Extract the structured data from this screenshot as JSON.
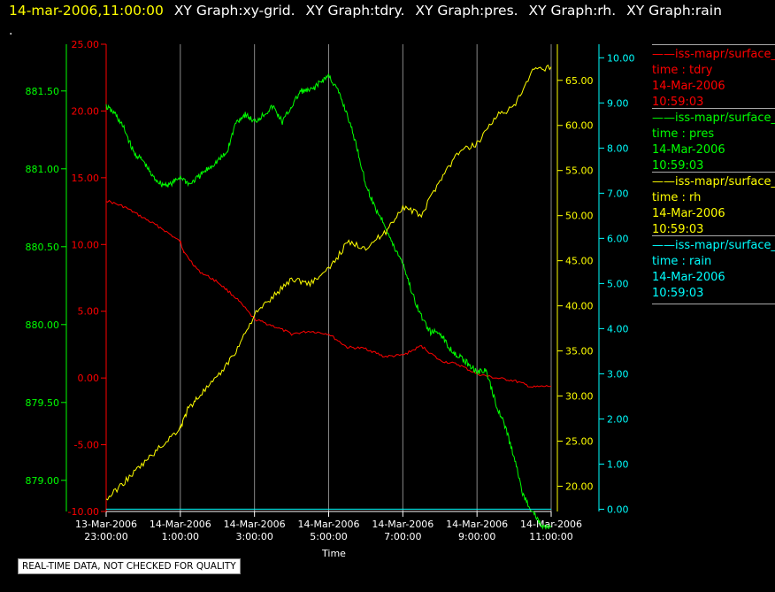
{
  "header": {
    "timestamp": "14-mar-2006,11:00:00",
    "graphs": [
      "XY Graph:xy-grid.",
      "XY Graph:tdry.",
      "XY Graph:pres.",
      "XY Graph:rh.",
      "XY Graph:rain"
    ],
    "dot": "."
  },
  "footer": "REAL-TIME DATA, NOT CHECKED FOR QUALITY",
  "legend": [
    {
      "series": "——iss-mapr/surface_met",
      "var": "time : tdry",
      "date": "14-Mar-2006",
      "time": "10:59:03",
      "color": "#ff0000"
    },
    {
      "series": "——iss-mapr/surface_met",
      "var": "time : pres",
      "date": "14-Mar-2006",
      "time": "10:59:03",
      "color": "#00ff00"
    },
    {
      "series": "——iss-mapr/surface_met",
      "var": "time : rh",
      "date": "14-Mar-2006",
      "time": "10:59:03",
      "color": "#ffff00"
    },
    {
      "series": "——iss-mapr/surface_met",
      "var": "time : rain",
      "date": "14-Mar-2006",
      "time": "10:59:03",
      "color": "#00ffff"
    }
  ],
  "chart_data": {
    "type": "line",
    "xlabel": "Time",
    "x_ticks": [
      {
        "line1": "13-Mar-2006",
        "line2": "23:00:00"
      },
      {
        "line1": "14-Mar-2006",
        "line2": "1:00:00"
      },
      {
        "line1": "14-Mar-2006",
        "line2": "3:00:00"
      },
      {
        "line1": "14-Mar-2006",
        "line2": "5:00:00"
      },
      {
        "line1": "14-Mar-2006",
        "line2": "7:00:00"
      },
      {
        "line1": "14-Mar-2006",
        "line2": "9:00:00"
      },
      {
        "line1": "14-Mar-2006",
        "line2": "11:00:00"
      }
    ],
    "x_hours": [
      23,
      25,
      27,
      29,
      31,
      33,
      35
    ],
    "xlim_hours": [
      23,
      35
    ],
    "grid": "vertical",
    "axes": {
      "pres": {
        "color": "#00ff00",
        "min": 878.8,
        "max": 881.8,
        "ticks": [
          "879.00",
          "879.50",
          "880.00",
          "880.50",
          "881.00",
          "881.50"
        ]
      },
      "tdry": {
        "color": "#ff0000",
        "min": -10,
        "max": 25,
        "ticks": [
          "-10.00",
          "-5.00",
          "0.00",
          "5.00",
          "10.00",
          "15.00",
          "20.00",
          "25.00"
        ]
      },
      "rh": {
        "color": "#ffff00",
        "min": 17.2,
        "max": 69.0,
        "ticks": [
          "20.00",
          "25.00",
          "30.00",
          "35.00",
          "40.00",
          "45.00",
          "50.00",
          "55.00",
          "60.00",
          "65.00"
        ]
      },
      "rain": {
        "color": "#00ffff",
        "min": -0.05,
        "max": 10.3,
        "ticks": [
          "0.00",
          "1.00",
          "2.00",
          "3.00",
          "4.00",
          "5.00",
          "6.00",
          "7.00",
          "8.00",
          "9.00",
          "10.00"
        ]
      }
    },
    "series": [
      {
        "name": "tdry",
        "axis": "tdry",
        "color": "#ff0000",
        "x": [
          23,
          23.5,
          24,
          24.5,
          25,
          25.1,
          25.5,
          26,
          26.5,
          27,
          27.5,
          28,
          28.5,
          29,
          29.5,
          30,
          30.5,
          31,
          31.5,
          32,
          32.5,
          33,
          33.5,
          34,
          34.5,
          35
        ],
        "y": [
          13.3,
          12.8,
          12.0,
          11.2,
          10.2,
          9.4,
          8.0,
          7.2,
          6.0,
          4.4,
          3.9,
          3.3,
          3.5,
          3.3,
          2.3,
          2.2,
          1.6,
          1.7,
          2.4,
          1.3,
          1.0,
          0.3,
          0.0,
          -0.2,
          -0.7,
          -0.6
        ]
      },
      {
        "name": "pres",
        "axis": "pres",
        "color": "#00ff00",
        "x": [
          23,
          23.25,
          23.5,
          23.75,
          24,
          24.25,
          24.5,
          24.75,
          25,
          25.25,
          25.5,
          25.75,
          26,
          26.25,
          26.5,
          26.75,
          27,
          27.25,
          27.5,
          27.75,
          28,
          28.25,
          28.5,
          28.75,
          29,
          29.25,
          29.5,
          29.75,
          30,
          30.25,
          30.5,
          30.75,
          31,
          31.25,
          31.5,
          31.75,
          32,
          32.25,
          32.5,
          32.75,
          33,
          33.25,
          33.5,
          33.75,
          34,
          34.25,
          34.5,
          34.75,
          35
        ],
        "y": [
          881.4,
          881.35,
          881.25,
          881.1,
          881.05,
          880.95,
          880.9,
          880.9,
          880.95,
          880.9,
          880.95,
          881.0,
          881.05,
          881.1,
          881.3,
          881.35,
          881.3,
          881.35,
          881.4,
          881.3,
          881.4,
          881.5,
          881.5,
          881.55,
          881.6,
          881.5,
          881.35,
          881.15,
          880.9,
          880.75,
          880.65,
          880.5,
          880.4,
          880.2,
          880.05,
          879.95,
          879.95,
          879.85,
          879.8,
          879.75,
          879.7,
          879.7,
          879.5,
          879.35,
          879.15,
          878.9,
          878.8,
          878.7,
          878.7
        ]
      },
      {
        "name": "rh",
        "axis": "rh",
        "color": "#ffff00",
        "x": [
          23,
          23.5,
          24,
          24.5,
          25,
          25.2,
          25.5,
          26,
          26.5,
          27,
          27.5,
          28,
          28.5,
          29,
          29.5,
          30,
          30.5,
          31,
          31.5,
          32,
          32.5,
          33,
          33.5,
          34,
          34.5,
          35
        ],
        "y": [
          18.5,
          20.5,
          22.5,
          24.5,
          26.5,
          28.5,
          30,
          32,
          35,
          39,
          41,
          43,
          42.5,
          44,
          47,
          46.5,
          48,
          51,
          50,
          54,
          57,
          58,
          61,
          62,
          66,
          66.5
        ]
      },
      {
        "name": "rain",
        "axis": "rain",
        "color": "#00ffff",
        "x": [
          23,
          35
        ],
        "y": [
          0,
          0
        ]
      }
    ]
  }
}
